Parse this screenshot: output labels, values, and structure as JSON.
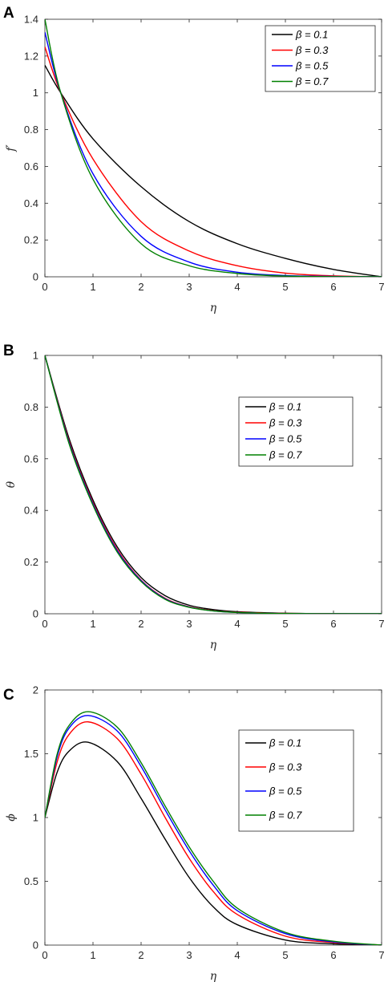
{
  "chart_data": [
    {
      "type": "line",
      "panel_label": "A",
      "xlabel": "η",
      "ylabel": "f′",
      "xlim": [
        0,
        7
      ],
      "ylim": [
        0,
        1.4
      ],
      "xticks": [
        0,
        1,
        2,
        3,
        4,
        5,
        6,
        7
      ],
      "yticks": [
        0,
        0.2,
        0.4,
        0.6,
        0.8,
        1,
        1.2,
        1.4
      ],
      "grid": false,
      "legend_position": "top-right",
      "series": [
        {
          "name": "β = 0.1",
          "color": "#000000",
          "x": [
            0,
            0.33,
            1,
            2,
            3,
            4,
            5,
            6,
            7
          ],
          "y": [
            1.15,
            1.0,
            0.75,
            0.49,
            0.3,
            0.18,
            0.1,
            0.04,
            0
          ]
        },
        {
          "name": "β = 0.3",
          "color": "#ff0000",
          "x": [
            0,
            0.33,
            1,
            2,
            3,
            4,
            5,
            6,
            7
          ],
          "y": [
            1.25,
            1.0,
            0.64,
            0.3,
            0.14,
            0.06,
            0.02,
            0.005,
            0
          ]
        },
        {
          "name": "β = 0.5",
          "color": "#0000ff",
          "x": [
            0,
            0.33,
            1,
            2,
            3,
            4,
            5,
            6,
            7
          ],
          "y": [
            1.33,
            1.0,
            0.56,
            0.22,
            0.08,
            0.025,
            0.007,
            0.002,
            0
          ]
        },
        {
          "name": "β = 0.7",
          "color": "#008000",
          "x": [
            0,
            0.33,
            1,
            2,
            3,
            4,
            5,
            6,
            7
          ],
          "y": [
            1.4,
            1.0,
            0.53,
            0.18,
            0.06,
            0.018,
            0.004,
            0.001,
            0
          ]
        }
      ]
    },
    {
      "type": "line",
      "panel_label": "B",
      "xlabel": "η",
      "ylabel": "θ",
      "xlim": [
        0,
        7
      ],
      "ylim": [
        0,
        1
      ],
      "xticks": [
        0,
        1,
        2,
        3,
        4,
        5,
        6,
        7
      ],
      "yticks": [
        0,
        0.2,
        0.4,
        0.6,
        0.8,
        1
      ],
      "grid": false,
      "legend_position": "right",
      "series": [
        {
          "name": "β = 0.1",
          "color": "#000000",
          "x": [
            0,
            0.5,
            1,
            1.5,
            2,
            2.5,
            3,
            3.5,
            4,
            5,
            6,
            7
          ],
          "y": [
            1,
            0.68,
            0.44,
            0.26,
            0.14,
            0.07,
            0.033,
            0.016,
            0.008,
            0.002,
            0.0005,
            0
          ]
        },
        {
          "name": "β = 0.3",
          "color": "#ff0000",
          "x": [
            0,
            0.5,
            1,
            1.5,
            2,
            2.5,
            3,
            3.5,
            4,
            5,
            6,
            7
          ],
          "y": [
            1,
            0.67,
            0.43,
            0.25,
            0.13,
            0.06,
            0.027,
            0.012,
            0.006,
            0.0015,
            0.0003,
            0
          ]
        },
        {
          "name": "β = 0.5",
          "color": "#0000ff",
          "x": [
            0,
            0.5,
            1,
            1.5,
            2,
            2.5,
            3,
            3.5,
            4,
            5,
            6,
            7
          ],
          "y": [
            1,
            0.665,
            0.425,
            0.245,
            0.128,
            0.058,
            0.026,
            0.011,
            0.005,
            0.001,
            0.0002,
            0
          ]
        },
        {
          "name": "β = 0.7",
          "color": "#008000",
          "x": [
            0,
            0.5,
            1,
            1.5,
            2,
            2.5,
            3,
            3.5,
            4,
            5,
            6,
            7
          ],
          "y": [
            1,
            0.66,
            0.42,
            0.24,
            0.125,
            0.056,
            0.025,
            0.011,
            0.005,
            0.001,
            0.0002,
            0
          ]
        }
      ]
    },
    {
      "type": "line",
      "panel_label": "C",
      "xlabel": "η",
      "ylabel": "ϕ",
      "xlim": [
        0,
        7
      ],
      "ylim": [
        0,
        2
      ],
      "xticks": [
        0,
        1,
        2,
        3,
        4,
        5,
        6,
        7
      ],
      "yticks": [
        0,
        0.5,
        1,
        1.5,
        2
      ],
      "grid": false,
      "legend_position": "right",
      "series": [
        {
          "name": "β = 0.1",
          "color": "#000000",
          "x": [
            0,
            0.25,
            0.5,
            0.9,
            1.5,
            2,
            2.5,
            3,
            3.5,
            4,
            5,
            6,
            7
          ],
          "y": [
            1,
            1.35,
            1.52,
            1.59,
            1.44,
            1.15,
            0.83,
            0.53,
            0.3,
            0.16,
            0.04,
            0.01,
            0
          ]
        },
        {
          "name": "β = 0.3",
          "color": "#ff0000",
          "x": [
            0,
            0.25,
            0.5,
            0.9,
            1.5,
            2,
            2.5,
            3,
            3.5,
            4,
            5,
            6,
            7
          ],
          "y": [
            1,
            1.43,
            1.65,
            1.75,
            1.62,
            1.34,
            1.0,
            0.68,
            0.42,
            0.24,
            0.07,
            0.02,
            0
          ]
        },
        {
          "name": "β = 0.5",
          "color": "#0000ff",
          "x": [
            0,
            0.25,
            0.5,
            0.9,
            1.5,
            2,
            2.5,
            3,
            3.5,
            4,
            5,
            6,
            7
          ],
          "y": [
            1,
            1.47,
            1.7,
            1.8,
            1.68,
            1.4,
            1.06,
            0.74,
            0.47,
            0.27,
            0.09,
            0.025,
            0
          ]
        },
        {
          "name": "β = 0.7",
          "color": "#008000",
          "x": [
            0,
            0.25,
            0.5,
            0.9,
            1.5,
            2,
            2.5,
            3,
            3.5,
            4,
            5,
            6,
            7
          ],
          "y": [
            1,
            1.49,
            1.72,
            1.83,
            1.71,
            1.43,
            1.09,
            0.77,
            0.5,
            0.29,
            0.1,
            0.03,
            0
          ]
        }
      ]
    }
  ]
}
